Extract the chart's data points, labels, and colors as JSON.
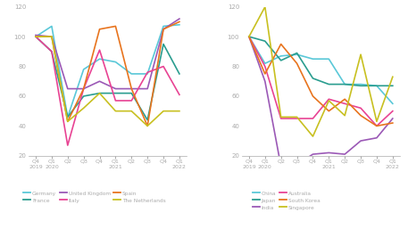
{
  "x_labels_top": [
    "Q4",
    "Q1",
    "Q2",
    "Q3",
    "Q4",
    "Q1",
    "Q2",
    "Q3",
    "Q4",
    "Q1"
  ],
  "x_labels_bot": [
    "2019",
    "2020",
    "",
    "",
    "",
    "2021",
    "",
    "",
    "",
    "2022"
  ],
  "left_series": {
    "Germany": [
      100,
      107,
      46,
      78,
      85,
      83,
      75,
      75,
      107,
      108
    ],
    "France": [
      100,
      90,
      46,
      60,
      62,
      62,
      62,
      44,
      95,
      75
    ],
    "United Kingdom": [
      101,
      100,
      65,
      65,
      70,
      65,
      65,
      65,
      105,
      112
    ],
    "Italy": [
      100,
      90,
      27,
      65,
      91,
      57,
      57,
      76,
      80,
      61
    ],
    "Spain": [
      100,
      100,
      43,
      65,
      105,
      107,
      65,
      40,
      105,
      110
    ],
    "The Netherlands": [
      100,
      100,
      43,
      52,
      62,
      50,
      50,
      40,
      50,
      50
    ]
  },
  "left_colors": {
    "Germany": "#5ac8d8",
    "France": "#2a9d8f",
    "United Kingdom": "#9b59b6",
    "Italy": "#e84393",
    "Spain": "#e8741e",
    "The Netherlands": "#c8c020"
  },
  "right_series": {
    "China": [
      100,
      82,
      87,
      88,
      85,
      85,
      68,
      68,
      67,
      55
    ],
    "Japan": [
      100,
      97,
      84,
      89,
      72,
      68,
      68,
      67,
      67,
      67
    ],
    "India": [
      100,
      70,
      13,
      14,
      21,
      22,
      21,
      30,
      32,
      45
    ],
    "Australia": [
      100,
      80,
      45,
      45,
      45,
      58,
      55,
      52,
      40,
      50
    ],
    "South Korea": [
      100,
      75,
      95,
      82,
      60,
      50,
      58,
      47,
      40,
      42
    ],
    "Singapore": [
      100,
      120,
      46,
      46,
      33,
      57,
      47,
      88,
      43,
      73
    ]
  },
  "right_colors": {
    "China": "#5ac8d8",
    "Japan": "#2a9d8f",
    "India": "#9b59b6",
    "Australia": "#e84393",
    "South Korea": "#e8741e",
    "Singapore": "#c8c020"
  },
  "ylim": [
    20,
    120
  ],
  "yticks": [
    20,
    40,
    60,
    80,
    100,
    120
  ],
  "linewidth": 1.2,
  "background": "#ffffff",
  "tick_color": "#aaaaaa",
  "label_color": "#aaaaaa"
}
